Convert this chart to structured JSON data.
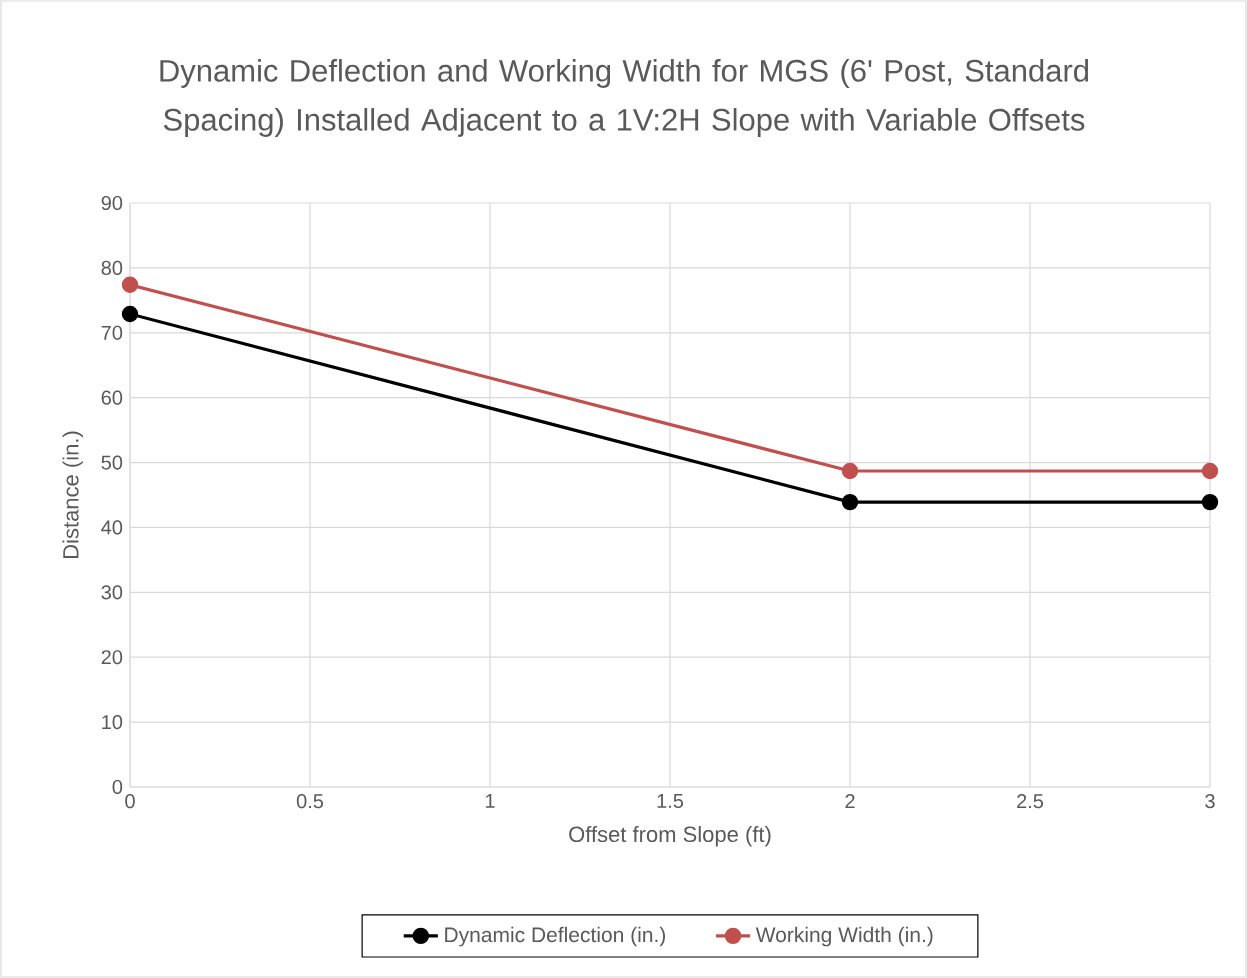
{
  "chart_data": {
    "type": "line",
    "title": "Dynamic Deflection and Working Width for MGS (6' Post, Standard Spacing) Installed Adjacent to a 1V:2H Slope with Variable Offsets",
    "xlabel": "Offset from Slope (ft)",
    "ylabel": "Distance (in.)",
    "x": [
      0,
      2,
      3
    ],
    "series": [
      {
        "name": "Dynamic Deflection (in.)",
        "color": "#000000",
        "values": [
          72.9,
          43.9,
          43.9
        ]
      },
      {
        "name": "Working Width (in.)",
        "color": "#c0504d",
        "values": [
          77.4,
          48.7,
          48.7
        ]
      }
    ],
    "xlim": [
      0,
      3
    ],
    "xticks": [
      0,
      0.5,
      1,
      1.5,
      2,
      2.5,
      3
    ],
    "ylim": [
      0,
      90
    ],
    "yticks": [
      0,
      10,
      20,
      30,
      40,
      50,
      60,
      70,
      80,
      90
    ],
    "grid": true,
    "legend": "bottom",
    "marker": "circle",
    "line_style": "solid"
  }
}
